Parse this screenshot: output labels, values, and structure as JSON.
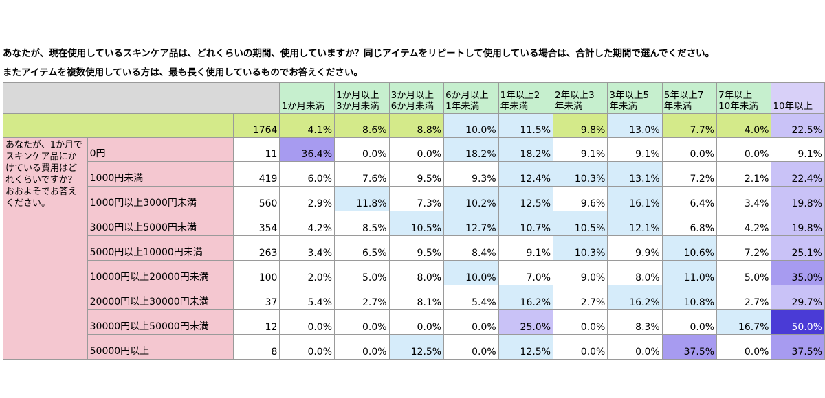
{
  "question1": "あなたが、現在使用しているスキンケア品は、どれくらいの期間、使用していますか？同じアイテムをリピートして使用している場合は、合計した期間で選んでください。",
  "question2": "またアイテムを複数使用している方は、最も長く使用しているものでお答えください。",
  "row_question": "あなたが、1か月でスキンケア品にかけている費用はどれくらいですか？おおよそでお答えください。",
  "chart_data": {
    "type": "table",
    "columns": [
      "1か月未満",
      "1か月以上3か月未満",
      "3か月以上6か月未満",
      "6か月以上1年未満",
      "1年以上2年未満",
      "2年以上3年未満",
      "3年以上5年未満",
      "5年以上7年未満",
      "7年以上10年未満",
      "10年以上"
    ],
    "column_lines": [
      [
        "1か月未満"
      ],
      [
        "1か月以上",
        "3か月未満"
      ],
      [
        "3か月以上",
        "6か月未満"
      ],
      [
        "6か月以上",
        "1年未満"
      ],
      [
        "1年以上2",
        "年未満"
      ],
      [
        "2年以上3",
        "年未満"
      ],
      [
        "3年以上5",
        "年未満"
      ],
      [
        "5年以上7",
        "年未満"
      ],
      [
        "7年以上",
        "10年未満"
      ],
      [
        "10年以上"
      ]
    ],
    "total": {
      "n": "1764",
      "values": [
        "4.1%",
        "8.6%",
        "8.8%",
        "10.0%",
        "11.5%",
        "9.8%",
        "13.0%",
        "7.7%",
        "4.0%",
        "22.5%"
      ]
    },
    "rows": [
      {
        "label": "0円",
        "n": "11",
        "values": [
          "36.4%",
          "0.0%",
          "0.0%",
          "18.2%",
          "18.2%",
          "9.1%",
          "9.1%",
          "0.0%",
          "0.0%",
          "9.1%"
        ]
      },
      {
        "label": "1000円未満",
        "n": "419",
        "values": [
          "6.0%",
          "7.6%",
          "9.5%",
          "9.3%",
          "12.4%",
          "10.3%",
          "13.1%",
          "7.2%",
          "2.1%",
          "22.4%"
        ]
      },
      {
        "label": "1000円以上3000円未満",
        "n": "560",
        "values": [
          "2.9%",
          "11.8%",
          "7.3%",
          "10.2%",
          "12.5%",
          "9.6%",
          "16.1%",
          "6.4%",
          "3.4%",
          "19.8%"
        ]
      },
      {
        "label": "3000円以上5000円未満",
        "n": "354",
        "values": [
          "4.2%",
          "8.5%",
          "10.5%",
          "12.7%",
          "10.7%",
          "10.5%",
          "12.1%",
          "6.8%",
          "4.2%",
          "19.8%"
        ]
      },
      {
        "label": "5000円以上10000円未満",
        "n": "263",
        "values": [
          "3.4%",
          "6.5%",
          "9.5%",
          "8.4%",
          "9.1%",
          "10.3%",
          "9.9%",
          "10.6%",
          "7.2%",
          "25.1%"
        ]
      },
      {
        "label": "10000円以上20000円未満",
        "n": "100",
        "values": [
          "2.0%",
          "5.0%",
          "8.0%",
          "10.0%",
          "7.0%",
          "9.0%",
          "8.0%",
          "11.0%",
          "5.0%",
          "35.0%"
        ]
      },
      {
        "label": "20000円以上30000円未満",
        "n": "37",
        "values": [
          "5.4%",
          "2.7%",
          "8.1%",
          "5.4%",
          "16.2%",
          "2.7%",
          "16.2%",
          "10.8%",
          "2.7%",
          "29.7%"
        ]
      },
      {
        "label": "30000円以上50000円未満",
        "n": "12",
        "values": [
          "0.0%",
          "0.0%",
          "0.0%",
          "0.0%",
          "25.0%",
          "0.0%",
          "8.3%",
          "0.0%",
          "16.7%",
          "50.0%"
        ]
      },
      {
        "label": "50000円以上",
        "n": "8",
        "values": [
          "0.0%",
          "0.0%",
          "12.5%",
          "0.0%",
          "12.5%",
          "0.0%",
          "0.0%",
          "37.5%",
          "0.0%",
          "37.5%"
        ]
      }
    ],
    "highlight_colors": {
      "pale_blue": "#d6ecfa",
      "light_purple": "#c9c2f7",
      "purple": "#a79bf0",
      "dark_purple": "#4a3bd6",
      "header_green": "#c6efce",
      "total_row": "#d4ea8a",
      "row_label_pink": "#f4c7d0"
    }
  }
}
